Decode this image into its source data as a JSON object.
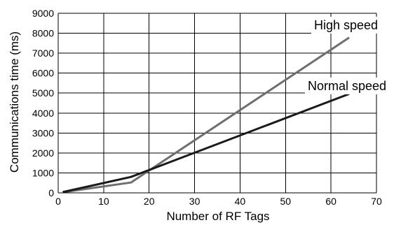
{
  "chart_data": {
    "type": "line",
    "title": "",
    "xlabel": "Number of RF Tags",
    "ylabel": "Communications time (ms)",
    "xlim": [
      0,
      70
    ],
    "ylim": [
      0,
      9000
    ],
    "xticks": [
      0,
      10,
      20,
      30,
      40,
      50,
      60,
      70
    ],
    "yticks": [
      0,
      1000,
      2000,
      3000,
      4000,
      5000,
      6000,
      7000,
      8000,
      9000
    ],
    "grid": true,
    "legend": "inline labels",
    "series": [
      {
        "name": "High speed",
        "color": "#6e6e6e",
        "x": [
          1,
          16,
          64
        ],
        "y": [
          30,
          520,
          7780
        ]
      },
      {
        "name": "Normal speed",
        "color": "#1a1a1a",
        "x": [
          1,
          16,
          64
        ],
        "y": [
          40,
          800,
          4960
        ]
      }
    ]
  }
}
